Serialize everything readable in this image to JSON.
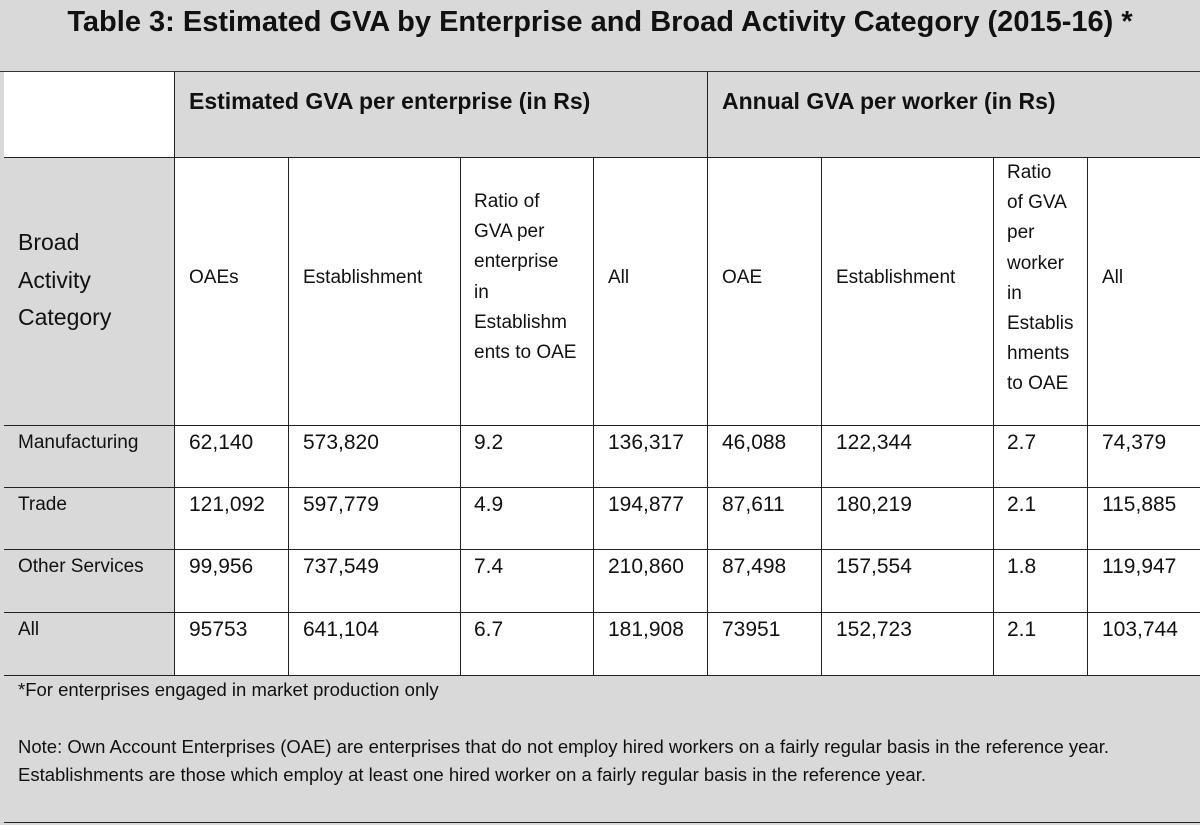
{
  "title": "Table 3: Estimated GVA by Enterprise and Broad Activity Category (2015-16) *",
  "group_headers": {
    "per_enterprise": "Estimated GVA per enterprise (in Rs)",
    "per_worker": "Annual GVA per worker (in Rs)"
  },
  "columns": {
    "category_lines": [
      "Broad",
      "Activity",
      "Category"
    ],
    "oaes": "OAEs",
    "establishment_1": "Establishment",
    "ratio_enterprise_lines": [
      "Ratio of",
      "GVA per",
      "enterprise",
      "in",
      "Establishm",
      "ents to OAE"
    ],
    "all_1": "All",
    "oae": "OAE",
    "establishment_2": "Establishment",
    "ratio_worker_lines": [
      "Ratio",
      "of GVA",
      "per",
      "worker",
      "in",
      "Establis",
      "hments",
      "to OAE"
    ],
    "all_2": "All"
  },
  "rows": [
    {
      "category": "Manufacturing",
      "values": [
        "62,140",
        "573,820",
        "9.2",
        "136,317",
        "46,088",
        "122,344",
        "2.7",
        "74,379"
      ]
    },
    {
      "category": "Trade",
      "values": [
        "121,092",
        "597,779",
        "4.9",
        "194,877",
        "87,611",
        "180,219",
        "2.1",
        "115,885"
      ]
    },
    {
      "category": "Other Services",
      "values": [
        "99,956",
        "737,549",
        "7.4",
        "210,860",
        "87,498",
        "157,554",
        "1.8",
        "119,947"
      ]
    },
    {
      "category": "All",
      "values": [
        "95753",
        "641,104",
        "6.7",
        "181,908",
        "73951",
        "152,723",
        "2.1",
        "103,744"
      ]
    }
  ],
  "footnote": "*For enterprises engaged in market production only",
  "note_lines": [
    "Note: Own Account Enterprises (OAE) are enterprises that do not employ hired workers on a fairly regular basis in the reference year.",
    "Establishments are those which employ at least one hired worker on a fairly regular basis in the reference year."
  ]
}
